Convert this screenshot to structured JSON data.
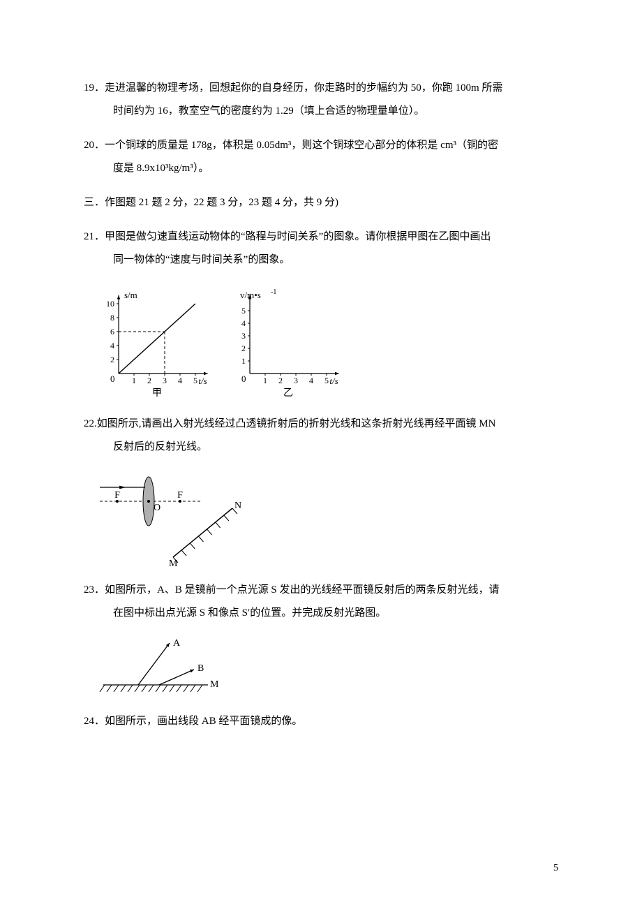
{
  "q19": {
    "num": "19．",
    "text_line1": "走进温馨的物理考场，回想起你的自身经历，你走路时的步幅约为 50，你跑 100m 所需",
    "text_line2": "时间约为 16，教室空气的密度约为 1.29（填上合适的物理量单位）。"
  },
  "q20": {
    "num": "20．",
    "text_line1": "一个铜球的质量是 178g，体积是 0.05dm³，则这个铜球空心部分的体积是 cm³（铜的密",
    "text_line2": "度是 8.9x10³kg/m³）。"
  },
  "section3": {
    "text": "三．作图题 21 题 2 分，22 题 3 分，23 题 4 分，共 9 分)"
  },
  "q21": {
    "num": "21．",
    "text_line1": "甲图是做匀速直线运动物体的“路程与时间关系”的图象。请你根据甲图在乙图中画出",
    "text_line2": "同一物体的“速度与时间关系”的图象。",
    "chart_left": {
      "ylabel": "s/m",
      "xlabel": "t/s",
      "caption": "甲",
      "y_ticks": [
        2,
        4,
        6,
        8,
        10
      ],
      "x_ticks": [
        1,
        2,
        3,
        4,
        5
      ],
      "line_start": [
        0,
        0
      ],
      "line_end": [
        5,
        10
      ],
      "dash_x": 3,
      "dash_y": 6,
      "axis_color": "#000000",
      "bg_color": "#ffffff",
      "font_size": 13
    },
    "chart_right": {
      "ylabel": "v/m•s⁻¹",
      "xlabel": "t/s",
      "caption": "乙",
      "y_ticks": [
        1,
        2,
        3,
        4,
        5
      ],
      "x_ticks": [
        1,
        2,
        3,
        4,
        5
      ],
      "axis_color": "#000000",
      "bg_color": "#ffffff",
      "font_size": 13
    }
  },
  "q22": {
    "num": "22.",
    "text_line1": "如图所示,请画出入射光线经过凸透镜折射后的折射光线和这条折射光线再经平面镜 MN",
    "text_line2": "反射后的反射光线。",
    "labels": {
      "F_left": "F",
      "O": "O",
      "F_right": "F",
      "N": "N",
      "M": "M"
    },
    "lens_fill": "#b0b0b0",
    "stroke": "#000000",
    "font_size": 14
  },
  "q23": {
    "num": "23．",
    "text_line1": "如图所示，A、B 是镜前一个点光源 S 发出的光线经平面镜反射后的两条反射光线，请",
    "text_line2": "在图中标出点光源 S 和像点 S′的位置。并完成反射光路图。",
    "labels": {
      "A": "A",
      "B": "B",
      "M": "M"
    },
    "stroke": "#000000",
    "font_size": 14
  },
  "q24": {
    "num": "24．",
    "text": "如图所示，画出线段 AB 经平面镜成的像。"
  },
  "page_number": "5",
  "colors": {
    "text": "#000000",
    "bg": "#ffffff"
  }
}
